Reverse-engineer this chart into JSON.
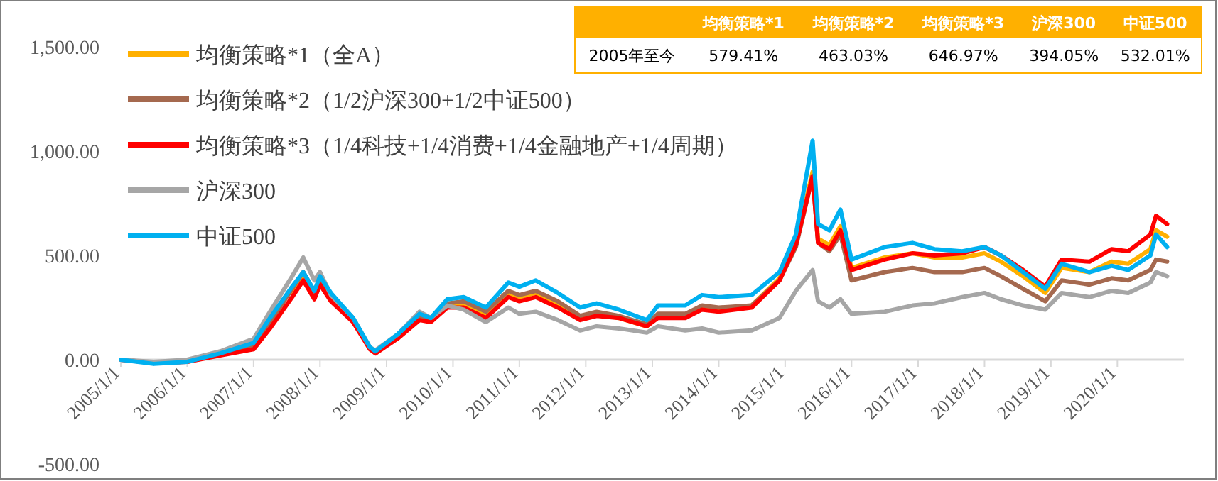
{
  "chart_data": [
    {
      "type": "line",
      "legend": "top left",
      "line_style": "solid",
      "marker": "none",
      "grid": false,
      "x": [
        "2005-01",
        "2005-07",
        "2006-01",
        "2006-07",
        "2007-01",
        "2007-04",
        "2007-08",
        "2007-10",
        "2007-12",
        "2008-01",
        "2008-03",
        "2008-07",
        "2008-10",
        "2008-11",
        "2009-03",
        "2009-07",
        "2009-09",
        "2009-12",
        "2010-03",
        "2010-07",
        "2010-11",
        "2011-01",
        "2011-04",
        "2011-08",
        "2011-12",
        "2012-03",
        "2012-07",
        "2012-12",
        "2013-02",
        "2013-07",
        "2013-10",
        "2014-01",
        "2014-07",
        "2014-12",
        "2015-03",
        "2015-06",
        "2015-07",
        "2015-09",
        "2015-11",
        "2016-01",
        "2016-07",
        "2016-12",
        "2017-04",
        "2017-09",
        "2018-01",
        "2018-04",
        "2018-08",
        "2018-12",
        "2019-03",
        "2019-08",
        "2019-12",
        "2020-03",
        "2020-07",
        "2020-08",
        "2020-10"
      ],
      "xlim": [
        "2005-01-01",
        "2021-01-01"
      ],
      "xticks": [
        {
          "value": "2005-01-01",
          "label": "2005/1/1"
        },
        {
          "value": "2006-01-01",
          "label": "2006/1/1"
        },
        {
          "value": "2007-01-01",
          "label": "2007/1/1"
        },
        {
          "value": "2008-01-01",
          "label": "2008/1/1"
        },
        {
          "value": "2009-01-01",
          "label": "2009/1/1"
        },
        {
          "value": "2010-01-01",
          "label": "2010/1/1"
        },
        {
          "value": "2011-01-01",
          "label": "2011/1/1"
        },
        {
          "value": "2012-01-01",
          "label": "2012/1/1"
        },
        {
          "value": "2013-01-01",
          "label": "2013/1/1"
        },
        {
          "value": "2014-01-01",
          "label": "2014/1/1"
        },
        {
          "value": "2015-01-01",
          "label": "2015/1/1"
        },
        {
          "value": "2016-01-01",
          "label": "2016/1/1"
        },
        {
          "value": "2017-01-01",
          "label": "2017/1/1"
        },
        {
          "value": "2018-01-01",
          "label": "2018/1/1"
        },
        {
          "value": "2019-01-01",
          "label": "2019/1/1"
        },
        {
          "value": "2020-01-01",
          "label": "2020/1/1"
        }
      ],
      "ylim": [
        -500,
        1500
      ],
      "yticks": [
        {
          "value": -500,
          "label": "-500.00"
        },
        {
          "value": 0,
          "label": "0.00"
        },
        {
          "value": 500,
          "label": "500.00"
        },
        {
          "value": 1000,
          "label": "1,000.00"
        },
        {
          "value": 1500,
          "label": "1,500.00"
        }
      ],
      "series": [
        {
          "name": "均衡策略*1（全A）",
          "color": "#ffb000",
          "values": [
            null,
            null,
            null,
            null,
            null,
            null,
            320,
            400,
            300,
            370,
            290,
            190,
            55,
            35,
            110,
            200,
            190,
            260,
            260,
            210,
            320,
            300,
            320,
            270,
            200,
            220,
            200,
            160,
            210,
            210,
            250,
            240,
            260,
            390,
            560,
            900,
            580,
            550,
            640,
            440,
            490,
            510,
            490,
            490,
            510,
            470,
            400,
            320,
            440,
            420,
            470,
            460,
            530,
            620,
            590
          ]
        },
        {
          "name": "均衡策略*2（1/2沪深300+1/2中证500）",
          "color": "#a5694f",
          "values": [
            0,
            -15,
            -10,
            25,
            70,
            180,
            340,
            420,
            320,
            390,
            300,
            190,
            55,
            35,
            110,
            210,
            190,
            270,
            280,
            230,
            330,
            310,
            330,
            280,
            210,
            230,
            210,
            170,
            220,
            220,
            260,
            250,
            260,
            380,
            540,
            880,
            560,
            520,
            600,
            380,
            420,
            440,
            420,
            420,
            440,
            400,
            340,
            280,
            380,
            360,
            390,
            380,
            430,
            480,
            470
          ]
        },
        {
          "name": "均衡策略*3（1/4科技+1/4消费+1/4金融地产+1/4周期）",
          "color": "#ff0000",
          "values": [
            0,
            -15,
            -10,
            20,
            50,
            150,
            300,
            380,
            290,
            360,
            280,
            180,
            50,
            30,
            100,
            190,
            180,
            250,
            250,
            200,
            300,
            280,
            300,
            250,
            190,
            210,
            200,
            160,
            200,
            200,
            240,
            230,
            250,
            380,
            550,
            880,
            560,
            530,
            620,
            430,
            480,
            510,
            500,
            510,
            540,
            500,
            430,
            350,
            480,
            470,
            530,
            520,
            600,
            690,
            650
          ]
        },
        {
          "name": "沪深300",
          "color": "#a6a6a6",
          "values": [
            0,
            -10,
            0,
            40,
            100,
            230,
            400,
            490,
            380,
            420,
            310,
            200,
            60,
            45,
            120,
            230,
            200,
            260,
            240,
            180,
            250,
            220,
            230,
            190,
            140,
            160,
            150,
            130,
            160,
            140,
            150,
            130,
            140,
            200,
            330,
            430,
            280,
            250,
            290,
            220,
            230,
            260,
            270,
            300,
            320,
            290,
            260,
            240,
            320,
            300,
            330,
            320,
            370,
            420,
            400
          ]
        },
        {
          "name": "中证500",
          "color": "#00b0f0",
          "values": [
            0,
            -20,
            -10,
            30,
            80,
            200,
            350,
            420,
            330,
            400,
            320,
            200,
            60,
            40,
            120,
            220,
            200,
            290,
            300,
            250,
            370,
            350,
            380,
            320,
            250,
            270,
            240,
            190,
            260,
            260,
            310,
            300,
            310,
            420,
            600,
            1050,
            650,
            620,
            720,
            480,
            540,
            560,
            530,
            520,
            540,
            500,
            420,
            340,
            460,
            420,
            450,
            430,
            500,
            600,
            540
          ]
        }
      ]
    },
    {
      "type": "other",
      "annotations": [
        "2005年至今"
      ],
      "categories": [
        "均衡策略*1",
        "均衡策略*2",
        "均衡策略*3",
        "沪深300",
        "中证500"
      ],
      "value_labels": [
        "579.41%",
        "463.03%",
        "646.97%",
        "394.05%",
        "532.01%"
      ]
    }
  ]
}
